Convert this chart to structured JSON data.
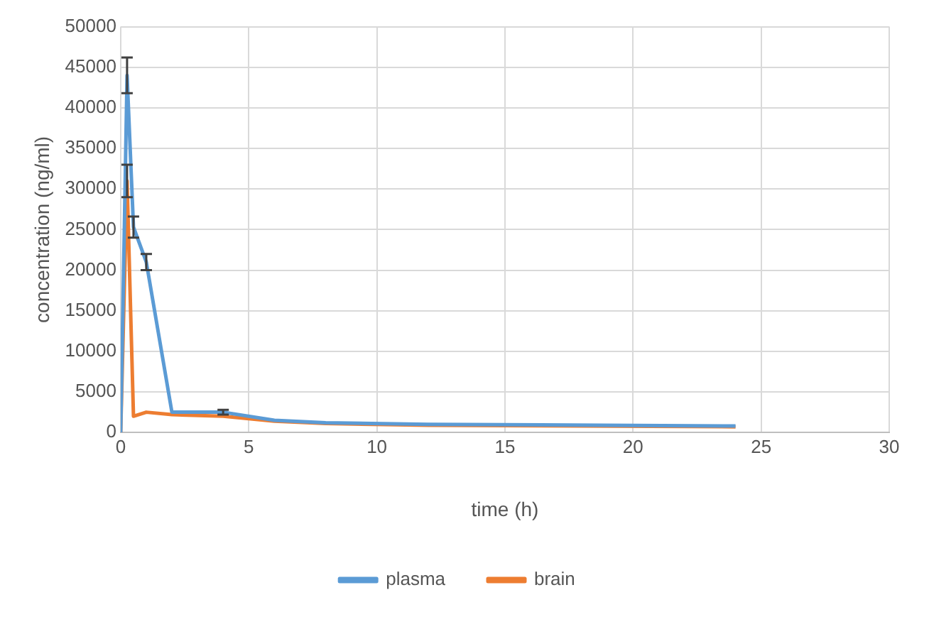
{
  "chart_data": {
    "type": "line",
    "xlabel": "time (h)",
    "ylabel": "concentration (ng/ml)",
    "xlim": [
      0,
      30
    ],
    "xticks": [
      0,
      5,
      10,
      15,
      20,
      25,
      30
    ],
    "ylim": [
      0,
      50000
    ],
    "yticks": [
      0,
      5000,
      10000,
      15000,
      20000,
      25000,
      30000,
      35000,
      40000,
      45000,
      50000
    ],
    "grid": true,
    "legend": "bottom",
    "marker": "none",
    "series": [
      {
        "name": "plasma",
        "color": "#5b9bd5",
        "x": [
          0,
          0.25,
          0.5,
          1,
          2,
          4,
          6,
          8,
          12,
          24
        ],
        "values": [
          0,
          44000,
          25300,
          21000,
          2500,
          2500,
          1500,
          1200,
          1000,
          800
        ],
        "errors": [
          null,
          2200,
          1300,
          1000,
          null,
          300,
          null,
          null,
          null,
          null
        ]
      },
      {
        "name": "brain",
        "color": "#ed7d31",
        "x": [
          0,
          0.25,
          0.5,
          1,
          2,
          4,
          6,
          8,
          12,
          24
        ],
        "values": [
          0,
          31000,
          2000,
          2500,
          2200,
          2000,
          1400,
          1100,
          900,
          700
        ],
        "errors": [
          null,
          2000,
          null,
          null,
          null,
          null,
          null,
          null,
          null,
          null
        ]
      }
    ]
  }
}
